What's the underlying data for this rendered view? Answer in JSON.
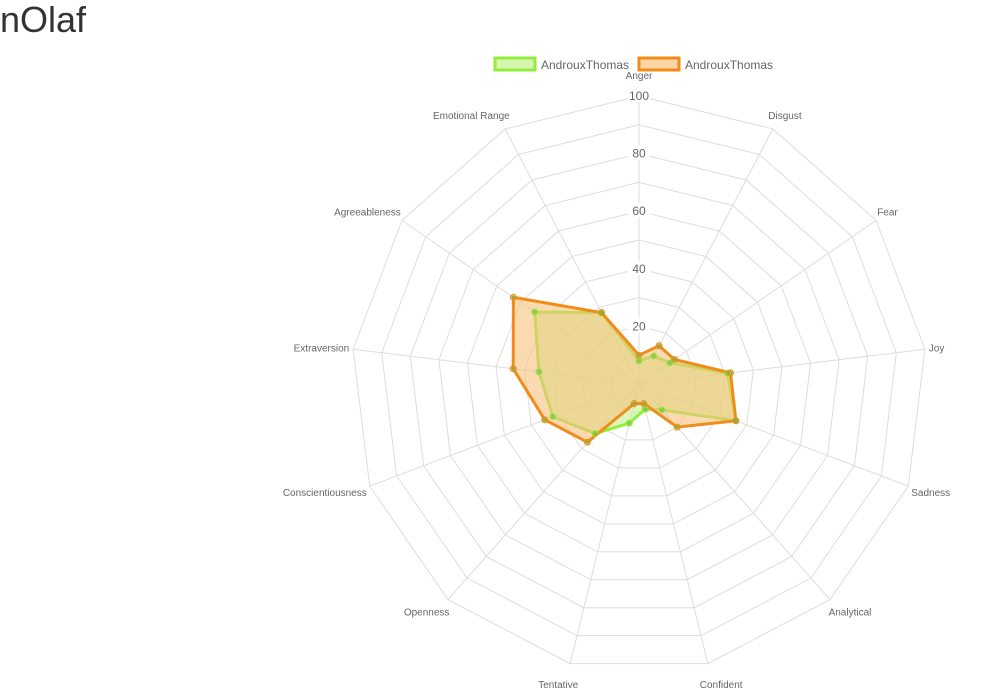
{
  "page": {
    "title": "nOlaf"
  },
  "chart_data": {
    "type": "radar",
    "title": "",
    "axes": [
      "Anger",
      "Disgust",
      "Fear",
      "Joy",
      "Sadness",
      "Analytical",
      "Confident",
      "Tentative",
      "Openness",
      "Conscientiousness",
      "Extraversion",
      "Agreeableness",
      "Emotional Range"
    ],
    "r_range": [
      0,
      100
    ],
    "ticks": [
      20,
      40,
      60,
      80,
      100
    ],
    "grid": true,
    "legend_position": "top",
    "series": [
      {
        "name": "AndrouxThomas",
        "values": [
          8,
          11,
          13,
          31,
          36,
          12,
          9,
          14,
          23,
          32,
          35,
          44,
          28
        ],
        "border_color": "#90ee3c",
        "fill_color": "#c5f28f"
      },
      {
        "name": "AndrouxThomas",
        "values": [
          10,
          15,
          15,
          32,
          36,
          20,
          7,
          7,
          27,
          35,
          44,
          53,
          28
        ],
        "border_color": "#f28c18",
        "fill_color": "#f9c27e"
      }
    ]
  }
}
